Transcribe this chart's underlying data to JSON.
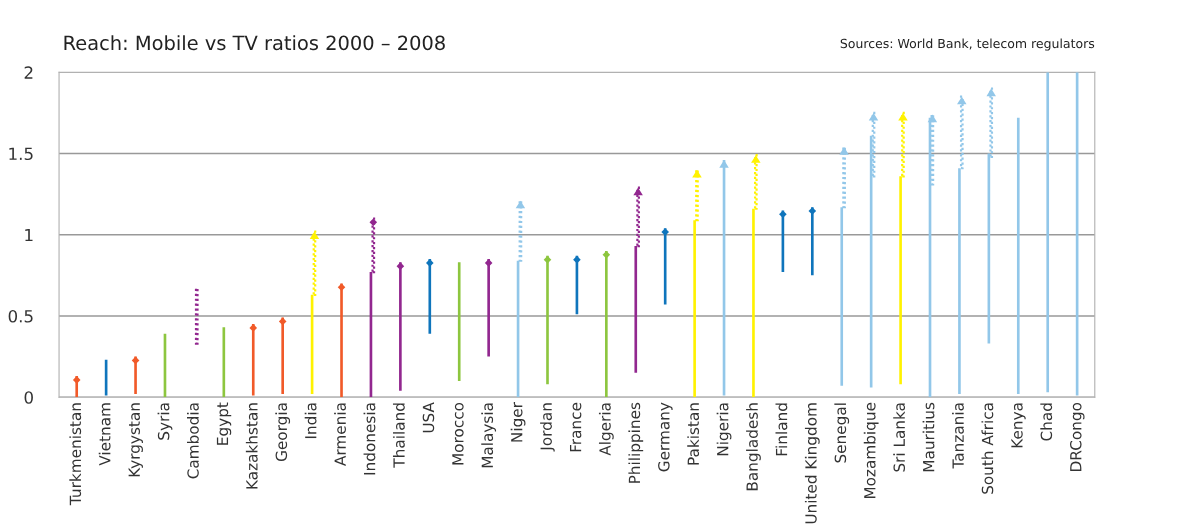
{
  "chart_data": {
    "type": "bar",
    "title": "Reach: Mobile vs TV ratios 2000 – 2008",
    "annotations": [
      "Sources: World Bank, telecom regulators"
    ],
    "categories": [
      "Turkmenistan",
      "Vietnam",
      "Kyrgystan",
      "Syria",
      "Cambodia",
      "Egypt",
      "Kazakhstan",
      "Georgia",
      "India",
      "Armenia",
      "Indonesia",
      "Thailand",
      "USA",
      "Morocco",
      "Malaysia",
      "Niger",
      "Jordan",
      "France",
      "Algeria",
      "Philippines",
      "Germany",
      "Pakistan",
      "Nigeria",
      "Bangladesh",
      "Finland",
      "United Kingdom",
      "Senegal",
      "Mozambique",
      "Sri Lanka",
      "Mauritius",
      "Tanzania",
      "South Africa",
      "Kenya",
      "Chad",
      "DRCongo"
    ],
    "series": [
      {
        "type": "bar",
        "line_style": "solid",
        "marker": "diamond",
        "colors": [
          "#f15a29",
          null,
          "#f15a29",
          null,
          null,
          null,
          "#f15a29",
          "#f15a29",
          null,
          "#f15a29",
          null,
          "#92278f",
          "#0f75bc",
          null,
          "#92278f",
          null,
          "#8dc63f",
          "#0f75bc",
          "#8dc63f",
          null,
          "#0f75bc",
          null,
          null,
          null,
          "#0f75bc",
          "#0f75bc",
          null,
          null,
          null,
          null,
          null,
          null,
          null,
          null,
          null
        ],
        "base": [
          0,
          null,
          0.02,
          null,
          null,
          null,
          0.01,
          0.02,
          null,
          0,
          null,
          0.04,
          0.39,
          null,
          0.25,
          null,
          0.08,
          0.51,
          0,
          null,
          0.57,
          null,
          null,
          null,
          0.77,
          0.75,
          null,
          null,
          null,
          null,
          null,
          null,
          null,
          null,
          null
        ],
        "values": [
          0.13,
          null,
          0.23,
          null,
          null,
          null,
          0.44,
          0.47,
          null,
          0.7,
          null,
          0.79,
          0.46,
          null,
          0.6,
          null,
          0.79,
          0.36,
          0.9,
          null,
          0.47,
          null,
          null,
          null,
          0.38,
          0.42,
          null,
          null,
          null,
          null,
          null,
          null,
          null,
          null,
          null
        ]
      },
      {
        "type": "bar",
        "line_style": "solid",
        "marker": "triangle",
        "colors": [
          null,
          null,
          null,
          null,
          null,
          null,
          null,
          null,
          null,
          null,
          null,
          null,
          null,
          null,
          null,
          null,
          null,
          null,
          null,
          null,
          null,
          null,
          "#92c7e9",
          null,
          null,
          null,
          null,
          null,
          null,
          null,
          null,
          null,
          null,
          null,
          null
        ],
        "base": [
          null,
          null,
          null,
          null,
          null,
          null,
          null,
          null,
          null,
          null,
          null,
          null,
          null,
          null,
          null,
          null,
          null,
          null,
          null,
          null,
          null,
          null,
          0.01,
          null,
          null,
          null,
          null,
          null,
          null,
          null,
          null,
          null,
          null,
          null,
          null
        ],
        "values": [
          null,
          null,
          null,
          null,
          null,
          null,
          null,
          null,
          null,
          null,
          null,
          null,
          null,
          null,
          null,
          null,
          null,
          null,
          null,
          null,
          null,
          null,
          1.45,
          null,
          null,
          null,
          null,
          null,
          null,
          null,
          null,
          null,
          null,
          null,
          null
        ]
      },
      {
        "type": "bar",
        "line_style": "solid",
        "colors": [
          null,
          "#0f75bc",
          null,
          "#8dc63f",
          null,
          "#8dc63f",
          null,
          null,
          "#fff200",
          null,
          "#92278f",
          null,
          null,
          "#8dc63f",
          null,
          "#92c7e9",
          null,
          null,
          null,
          "#92278f",
          null,
          "#fff200",
          null,
          "#fff200",
          null,
          null,
          "#92c7e9",
          "#92c7e9",
          "#fff200",
          "#92c7e9",
          "#92c7e9",
          "#92c7e9",
          "#92c7e9",
          "#92c7e9",
          "#92c7e9"
        ],
        "base": [
          null,
          0.01,
          null,
          0,
          null,
          0,
          null,
          null,
          0.02,
          null,
          0,
          null,
          null,
          0.1,
          null,
          0,
          null,
          null,
          null,
          0.15,
          null,
          0,
          null,
          0,
          null,
          null,
          0.07,
          0.06,
          0.08,
          0,
          0.02,
          0.33,
          0.02,
          0.03,
          0.01
        ],
        "values": [
          null,
          0.22,
          null,
          0.39,
          null,
          0.43,
          null,
          null,
          0.61,
          null,
          0.77,
          null,
          null,
          0.73,
          null,
          0.84,
          null,
          null,
          null,
          0.78,
          null,
          1.09,
          null,
          1.16,
          null,
          null,
          1.1,
          1.55,
          1.28,
          1.72,
          1.39,
          1.17,
          1.7,
          1.97,
          1.99
        ]
      },
      {
        "type": "bar",
        "line_style": "dotted",
        "marker": "triangle",
        "colors": [
          null,
          null,
          null,
          null,
          null,
          null,
          null,
          null,
          "#fff200",
          null,
          null,
          null,
          null,
          null,
          null,
          "#92c7e9",
          null,
          null,
          null,
          "#92278f",
          null,
          "#fff200",
          null,
          "#fff200",
          null,
          null,
          "#92c7e9",
          "#92c7e9",
          "#fff200",
          "#92c7e9",
          "#92c7e9",
          "#92c7e9",
          null,
          null,
          null
        ],
        "base": [
          null,
          null,
          null,
          null,
          null,
          null,
          null,
          null,
          0.63,
          null,
          null,
          null,
          null,
          null,
          null,
          0.84,
          null,
          null,
          null,
          0.93,
          null,
          1.09,
          null,
          1.16,
          null,
          null,
          1.17,
          1.36,
          1.36,
          1.31,
          1.41,
          1.48,
          null,
          null,
          null
        ],
        "values": [
          null,
          null,
          null,
          null,
          null,
          null,
          null,
          null,
          0.39,
          null,
          null,
          null,
          null,
          null,
          null,
          0.37,
          null,
          null,
          null,
          0.36,
          null,
          0.31,
          null,
          0.33,
          null,
          null,
          0.37,
          0.39,
          0.39,
          0.43,
          0.44,
          0.42,
          null,
          null,
          null
        ]
      },
      {
        "type": "bar",
        "line_style": "dotted",
        "marker": "diamond",
        "colors": [
          null,
          null,
          null,
          null,
          null,
          null,
          null,
          null,
          null,
          null,
          "#92278f",
          null,
          null,
          null,
          null,
          null,
          null,
          null,
          null,
          null,
          null,
          null,
          null,
          null,
          null,
          null,
          null,
          null,
          null,
          null,
          null,
          null,
          null,
          null,
          null
        ],
        "base": [
          null,
          null,
          null,
          null,
          null,
          null,
          null,
          null,
          null,
          null,
          0.77,
          null,
          null,
          null,
          null,
          null,
          null,
          null,
          null,
          null,
          null,
          null,
          null,
          null,
          null,
          null,
          null,
          null,
          null,
          null,
          null,
          null,
          null,
          null,
          null
        ],
        "values": [
          null,
          null,
          null,
          null,
          null,
          null,
          null,
          null,
          null,
          null,
          0.33,
          null,
          null,
          null,
          null,
          null,
          null,
          null,
          null,
          null,
          null,
          null,
          null,
          null,
          null,
          null,
          null,
          null,
          null,
          null,
          null,
          null,
          null,
          null,
          null
        ]
      },
      {
        "type": "bar",
        "line_style": "dotted",
        "colors": [
          null,
          null,
          null,
          null,
          "#92278f",
          null,
          null,
          null,
          null,
          null,
          null,
          null,
          null,
          null,
          null,
          null,
          null,
          null,
          null,
          null,
          null,
          null,
          null,
          null,
          null,
          null,
          null,
          null,
          null,
          null,
          null,
          null,
          null,
          null,
          null
        ],
        "base": [
          null,
          null,
          null,
          null,
          0.33,
          null,
          null,
          null,
          null,
          null,
          null,
          null,
          null,
          null,
          null,
          null,
          null,
          null,
          null,
          null,
          null,
          null,
          null,
          null,
          null,
          null,
          null,
          null,
          null,
          null,
          null,
          null,
          null,
          null,
          null
        ],
        "values": [
          null,
          null,
          null,
          null,
          0.34,
          null,
          null,
          null,
          null,
          null,
          null,
          null,
          null,
          null,
          null,
          null,
          null,
          null,
          null,
          null,
          null,
          null,
          null,
          null,
          null,
          null,
          null,
          null,
          null,
          null,
          null,
          null,
          null,
          null,
          null
        ]
      }
    ],
    "ylim": [
      0,
      2
    ],
    "yticks": [
      0,
      0.5,
      1,
      1.5,
      2
    ],
    "grid": "y"
  }
}
